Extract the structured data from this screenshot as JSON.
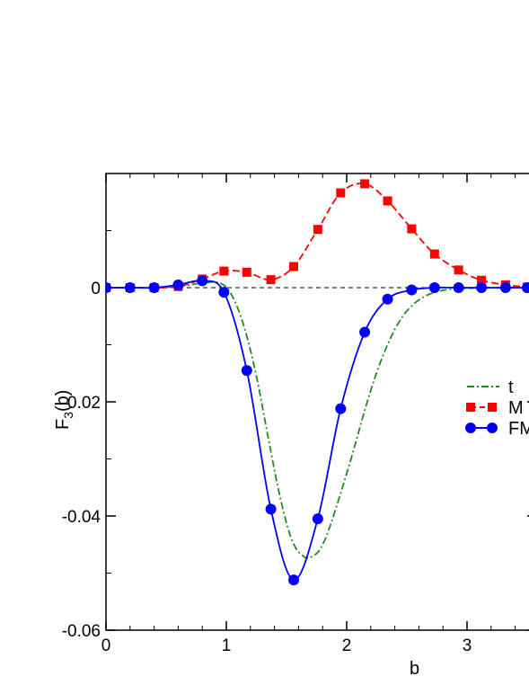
{
  "chart_data": {
    "type": "line",
    "xlabel": "b",
    "ylabel_main": "F",
    "ylabel_sub": "3",
    "ylabel_tail": "(b)",
    "xlim": [
      0,
      3.5
    ],
    "ylim": [
      -0.06,
      0.02
    ],
    "x_ticks": [
      0,
      1,
      2,
      3
    ],
    "x_tick_labels": [
      "0",
      "1",
      "2",
      "3"
    ],
    "y_ticks": [
      -0.06,
      -0.04,
      -0.02,
      0
    ],
    "y_tick_labels": [
      "-0.06",
      "-0.04",
      "-0.02",
      "0"
    ],
    "zero_line": true,
    "legend_position": "right",
    "series": [
      {
        "name": "t",
        "color": "#228B22",
        "style": "dash-dot",
        "marker": "none",
        "x": [
          0,
          0.2,
          0.4,
          0.6,
          0.8,
          0.95,
          1.05,
          1.15,
          1.25,
          1.35,
          1.45,
          1.55,
          1.65,
          1.72,
          1.78,
          1.85,
          1.95,
          2.05,
          2.15,
          2.25,
          2.35,
          2.45,
          2.55,
          2.65,
          2.75,
          2.85,
          3.0,
          3.2,
          3.5
        ],
        "y": [
          0,
          0,
          0,
          0.0002,
          0.0008,
          0.0008,
          -0.0015,
          -0.007,
          -0.0155,
          -0.0265,
          -0.037,
          -0.0445,
          -0.0472,
          -0.047,
          -0.0458,
          -0.0425,
          -0.036,
          -0.029,
          -0.0215,
          -0.0148,
          -0.0095,
          -0.0055,
          -0.003,
          -0.0015,
          -0.0007,
          -0.0003,
          -0.0001,
          0,
          0
        ]
      },
      {
        "name": "M",
        "color": "#ff0000",
        "style": "dashed",
        "marker": "square",
        "x": [
          0,
          0.2,
          0.4,
          0.6,
          0.8,
          0.98,
          1.17,
          1.37,
          1.56,
          1.76,
          1.95,
          2.15,
          2.34,
          2.54,
          2.73,
          2.93,
          3.12,
          3.32,
          3.5
        ],
        "y": [
          0,
          0,
          0,
          0.0002,
          0.0015,
          0.0029,
          0.0027,
          0.0014,
          0.0037,
          0.0102,
          0.0166,
          0.0182,
          0.0152,
          0.0103,
          0.0059,
          0.0031,
          0.0013,
          0.0005,
          0.0001
        ]
      },
      {
        "name": "FM",
        "color": "#0000ff",
        "style": "solid",
        "marker": "circle",
        "x": [
          0,
          0.2,
          0.4,
          0.6,
          0.8,
          0.98,
          1.17,
          1.37,
          1.56,
          1.76,
          1.95,
          2.15,
          2.34,
          2.54,
          2.73,
          2.93,
          3.12,
          3.32,
          3.5
        ],
        "y": [
          0,
          0,
          0,
          0.0005,
          0.0012,
          -0.0008,
          -0.0145,
          -0.0388,
          -0.0512,
          -0.0405,
          -0.0212,
          -0.0078,
          -0.002,
          -0.0004,
          0,
          0,
          0,
          0,
          0
        ]
      }
    ]
  }
}
